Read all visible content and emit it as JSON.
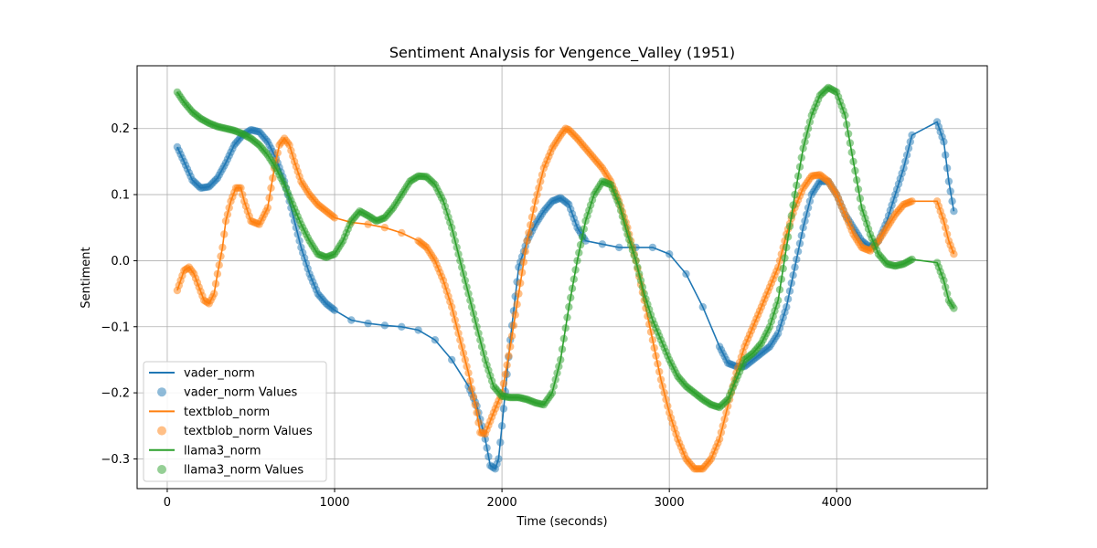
{
  "chart_data": {
    "type": "line",
    "title": "Sentiment Analysis for Vengence_Valley (1951)",
    "xlabel": "Time (seconds)",
    "ylabel": "Sentiment",
    "xlim": [
      -180,
      4900
    ],
    "ylim": [
      -0.345,
      0.295
    ],
    "xticks": [
      0,
      1000,
      2000,
      3000,
      4000
    ],
    "yticks": [
      -0.3,
      -0.2,
      -0.1,
      0.0,
      0.1,
      0.2
    ],
    "xtick_labels": [
      "0",
      "1000",
      "2000",
      "3000",
      "4000"
    ],
    "ytick_labels": [
      "−0.3",
      "−0.2",
      "−0.1",
      "0.0",
      "0.1",
      "0.2"
    ],
    "grid": true,
    "legend_position": "lower-left",
    "series": [
      {
        "name": "vader_norm",
        "color": "#1f77b4",
        "x": [
          60,
          100,
          150,
          200,
          250,
          300,
          350,
          400,
          450,
          500,
          550,
          600,
          650,
          700,
          750,
          800,
          850,
          900,
          950,
          1000,
          1100,
          1200,
          1300,
          1400,
          1500,
          1600,
          1700,
          1800,
          1850,
          1900,
          1930,
          1960,
          1980,
          2000,
          2050,
          2100,
          2150,
          2200,
          2250,
          2300,
          2350,
          2400,
          2450,
          2500,
          2600,
          2700,
          2800,
          2900,
          3000,
          3100,
          3200,
          3300,
          3350,
          3400,
          3450,
          3500,
          3550,
          3600,
          3650,
          3700,
          3750,
          3800,
          3850,
          3900,
          3950,
          4000,
          4050,
          4100,
          4150,
          4200,
          4250,
          4300,
          4350,
          4400,
          4450,
          4600,
          4640,
          4670,
          4700
        ],
        "values": [
          0.172,
          0.15,
          0.122,
          0.11,
          0.112,
          0.125,
          0.148,
          0.175,
          0.19,
          0.198,
          0.195,
          0.18,
          0.155,
          0.12,
          0.07,
          0.02,
          -0.02,
          -0.05,
          -0.065,
          -0.075,
          -0.09,
          -0.095,
          -0.098,
          -0.1,
          -0.105,
          -0.12,
          -0.15,
          -0.19,
          -0.22,
          -0.27,
          -0.31,
          -0.315,
          -0.3,
          -0.25,
          -0.12,
          -0.01,
          0.03,
          0.055,
          0.075,
          0.09,
          0.095,
          0.085,
          0.05,
          0.03,
          0.025,
          0.02,
          0.02,
          0.02,
          0.01,
          -0.02,
          -0.07,
          -0.13,
          -0.155,
          -0.16,
          -0.16,
          -0.15,
          -0.14,
          -0.13,
          -0.11,
          -0.07,
          -0.01,
          0.05,
          0.1,
          0.12,
          0.12,
          0.1,
          0.07,
          0.05,
          0.03,
          0.02,
          0.03,
          0.06,
          0.1,
          0.14,
          0.19,
          0.21,
          0.18,
          0.12,
          0.075
        ]
      },
      {
        "name": "textblob_norm",
        "color": "#ff7f0e",
        "x": [
          60,
          80,
          100,
          130,
          160,
          190,
          220,
          250,
          280,
          300,
          330,
          350,
          380,
          410,
          440,
          460,
          500,
          550,
          600,
          640,
          670,
          700,
          730,
          760,
          800,
          850,
          900,
          950,
          1000,
          1100,
          1200,
          1300,
          1400,
          1500,
          1550,
          1600,
          1650,
          1700,
          1750,
          1800,
          1850,
          1870,
          1900,
          1950,
          2000,
          2050,
          2100,
          2150,
          2200,
          2250,
          2300,
          2350,
          2380,
          2400,
          2450,
          2500,
          2550,
          2600,
          2650,
          2700,
          2750,
          2800,
          2850,
          2900,
          2950,
          3000,
          3050,
          3100,
          3150,
          3200,
          3250,
          3300,
          3350,
          3400,
          3450,
          3500,
          3550,
          3600,
          3650,
          3700,
          3750,
          3800,
          3850,
          3900,
          3950,
          4000,
          4050,
          4100,
          4150,
          4200,
          4250,
          4300,
          4350,
          4400,
          4450,
          4600,
          4640,
          4670,
          4700
        ],
        "values": [
          -0.045,
          -0.03,
          -0.015,
          -0.01,
          -0.02,
          -0.04,
          -0.06,
          -0.065,
          -0.05,
          -0.02,
          0.02,
          0.06,
          0.09,
          0.11,
          0.11,
          0.09,
          0.06,
          0.055,
          0.08,
          0.14,
          0.175,
          0.185,
          0.175,
          0.15,
          0.12,
          0.1,
          0.085,
          0.075,
          0.065,
          0.058,
          0.055,
          0.05,
          0.042,
          0.03,
          0.02,
          0.0,
          -0.03,
          -0.07,
          -0.12,
          -0.17,
          -0.23,
          -0.26,
          -0.262,
          -0.23,
          -0.2,
          -0.13,
          -0.05,
          0.03,
          0.09,
          0.14,
          0.17,
          0.19,
          0.2,
          0.198,
          0.185,
          0.17,
          0.155,
          0.14,
          0.12,
          0.09,
          0.05,
          0.0,
          -0.06,
          -0.12,
          -0.18,
          -0.23,
          -0.27,
          -0.3,
          -0.315,
          -0.315,
          -0.3,
          -0.27,
          -0.22,
          -0.17,
          -0.13,
          -0.1,
          -0.07,
          -0.04,
          -0.01,
          0.04,
          0.08,
          0.11,
          0.128,
          0.13,
          0.12,
          0.1,
          0.07,
          0.04,
          0.02,
          0.015,
          0.03,
          0.05,
          0.07,
          0.085,
          0.09,
          0.09,
          0.06,
          0.03,
          0.01
        ]
      },
      {
        "name": "llama3_norm",
        "color": "#2ca02c",
        "x": [
          60,
          100,
          150,
          200,
          250,
          300,
          350,
          400,
          450,
          500,
          550,
          600,
          650,
          700,
          750,
          800,
          850,
          900,
          950,
          1000,
          1050,
          1100,
          1150,
          1200,
          1250,
          1300,
          1350,
          1400,
          1450,
          1500,
          1550,
          1600,
          1650,
          1700,
          1750,
          1800,
          1850,
          1900,
          1950,
          2000,
          2050,
          2100,
          2150,
          2200,
          2250,
          2300,
          2350,
          2400,
          2450,
          2500,
          2550,
          2600,
          2650,
          2700,
          2750,
          2800,
          2850,
          2900,
          2950,
          3000,
          3050,
          3100,
          3150,
          3200,
          3250,
          3300,
          3350,
          3400,
          3450,
          3500,
          3550,
          3600,
          3650,
          3700,
          3750,
          3800,
          3850,
          3900,
          3950,
          4000,
          4050,
          4100,
          4150,
          4200,
          4250,
          4300,
          4350,
          4400,
          4450,
          4600,
          4640,
          4670,
          4700
        ],
        "values": [
          0.255,
          0.24,
          0.225,
          0.215,
          0.208,
          0.203,
          0.2,
          0.197,
          0.192,
          0.185,
          0.175,
          0.16,
          0.14,
          0.115,
          0.085,
          0.055,
          0.03,
          0.01,
          0.005,
          0.01,
          0.03,
          0.06,
          0.075,
          0.068,
          0.06,
          0.065,
          0.08,
          0.1,
          0.12,
          0.128,
          0.127,
          0.115,
          0.09,
          0.05,
          0.0,
          -0.05,
          -0.1,
          -0.15,
          -0.19,
          -0.205,
          -0.207,
          -0.207,
          -0.21,
          -0.215,
          -0.218,
          -0.2,
          -0.15,
          -0.07,
          0.0,
          0.06,
          0.1,
          0.12,
          0.115,
          0.085,
          0.04,
          0.0,
          -0.05,
          -0.09,
          -0.12,
          -0.15,
          -0.175,
          -0.19,
          -0.2,
          -0.21,
          -0.218,
          -0.222,
          -0.21,
          -0.18,
          -0.15,
          -0.14,
          -0.125,
          -0.1,
          -0.06,
          0.02,
          0.1,
          0.17,
          0.22,
          0.25,
          0.262,
          0.255,
          0.22,
          0.15,
          0.08,
          0.04,
          0.01,
          -0.005,
          -0.008,
          -0.005,
          0.002,
          -0.003,
          -0.03,
          -0.06,
          -0.072
        ]
      }
    ]
  },
  "legend": {
    "items": [
      {
        "label": "vader_norm",
        "kind": "line",
        "color": "#1f77b4"
      },
      {
        "label": "vader_norm Values",
        "kind": "marker",
        "color": "#1f77b4"
      },
      {
        "label": "textblob_norm",
        "kind": "line",
        "color": "#ff7f0e"
      },
      {
        "label": "textblob_norm Values",
        "kind": "marker",
        "color": "#ff7f0e"
      },
      {
        "label": "llama3_norm",
        "kind": "line",
        "color": "#2ca02c"
      },
      {
        "label": "llama3_norm Values",
        "kind": "marker",
        "color": "#2ca02c"
      }
    ]
  }
}
